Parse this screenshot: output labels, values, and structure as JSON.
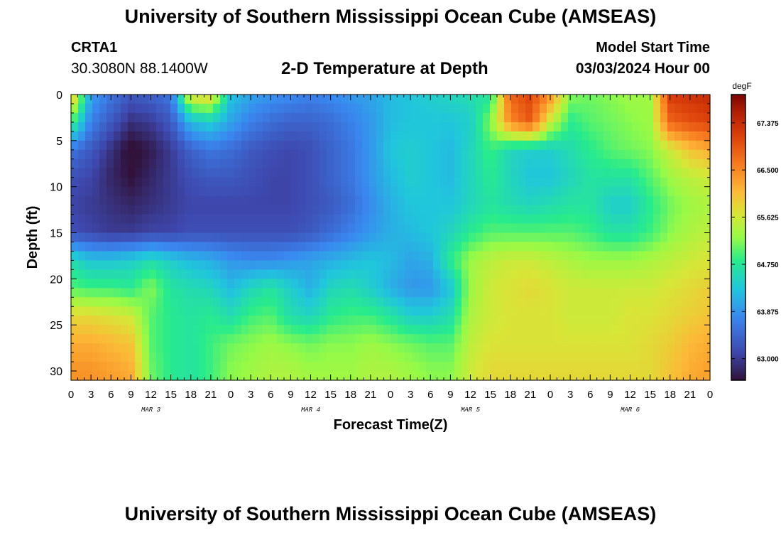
{
  "header": {
    "title": "University of Southern Mississippi Ocean Cube (AMSEAS)",
    "bottom_title": "University of Southern Mississippi Ocean Cube (AMSEAS)",
    "station": "CRTA1",
    "coords": "30.3080N  88.1400W",
    "subtitle": "2-D Temperature at Depth",
    "model_start_label": "Model Start Time",
    "model_start_date": "03/03/2024 Hour 00"
  },
  "chart_data": {
    "type": "heatmap",
    "title": "2-D Temperature at Depth",
    "xlabel": "Forecast Time(Z)",
    "ylabel": "Depth (ft)",
    "x_range_hours": [
      0,
      96
    ],
    "ylim": [
      31,
      0
    ],
    "y_ticks": [
      0,
      5,
      10,
      15,
      20,
      25,
      30
    ],
    "x_tick_labels": [
      "0",
      "3",
      "6",
      "9",
      "12",
      "15",
      "18",
      "21",
      "0",
      "3",
      "6",
      "9",
      "12",
      "15",
      "18",
      "21",
      "0",
      "3",
      "6",
      "9",
      "12",
      "15",
      "18",
      "21",
      "0",
      "3",
      "6",
      "9",
      "12",
      "15",
      "18",
      "21",
      "0"
    ],
    "day_labels": [
      {
        "label": "MAR 3",
        "hour": 12
      },
      {
        "label": "MAR 4",
        "hour": 36
      },
      {
        "label": "MAR 5",
        "hour": 60
      },
      {
        "label": "MAR 6",
        "hour": 84
      }
    ],
    "colorbar": {
      "unit": "degF",
      "min": 62.6,
      "max": 67.9,
      "ticks": [
        "63.000",
        "63.875",
        "64.750",
        "65.625",
        "66.500",
        "67.375"
      ]
    },
    "depth_levels_ft": [
      0,
      3,
      6,
      9,
      12,
      15,
      18,
      21,
      24,
      27,
      30
    ],
    "time_hours": [
      0,
      3,
      6,
      9,
      12,
      15,
      18,
      21,
      24,
      27,
      30,
      33,
      36,
      39,
      42,
      45,
      48,
      51,
      54,
      57,
      60,
      63,
      66,
      69,
      72,
      75,
      78,
      81,
      84,
      87,
      90,
      93,
      96
    ],
    "temperature_degF": [
      [
        66.2,
        64.0,
        63.6,
        63.3,
        63.4,
        63.6,
        65.8,
        65.9,
        64.3,
        64.0,
        63.9,
        63.8,
        63.7,
        63.8,
        63.9,
        64.0,
        64.2,
        64.3,
        64.4,
        64.5,
        64.6,
        64.7,
        66.8,
        67.1,
        66.4,
        65.2,
        65.1,
        65.2,
        65.3,
        65.3,
        67.2,
        67.3,
        67.4
      ],
      [
        65.0,
        63.7,
        63.3,
        62.9,
        63.0,
        63.3,
        64.2,
        64.4,
        64.0,
        63.7,
        63.5,
        63.4,
        63.4,
        63.5,
        63.7,
        63.9,
        64.2,
        64.3,
        64.3,
        64.3,
        64.4,
        65.2,
        66.5,
        66.9,
        65.6,
        64.8,
        65.0,
        65.1,
        65.2,
        65.3,
        66.8,
        67.0,
        67.1
      ],
      [
        63.6,
        63.3,
        62.9,
        62.5,
        62.7,
        63.0,
        63.4,
        63.6,
        63.5,
        63.3,
        63.2,
        63.1,
        63.2,
        63.4,
        63.6,
        63.9,
        64.3,
        64.4,
        64.3,
        64.2,
        64.5,
        64.9,
        64.5,
        64.4,
        64.4,
        64.6,
        64.8,
        65.0,
        65.1,
        65.2,
        65.6,
        66.0,
        66.2
      ],
      [
        63.2,
        63.1,
        62.8,
        62.6,
        62.8,
        63.0,
        63.2,
        63.3,
        63.3,
        63.2,
        63.1,
        63.1,
        63.2,
        63.4,
        63.6,
        63.9,
        64.2,
        64.4,
        64.3,
        64.2,
        64.5,
        64.8,
        64.5,
        64.3,
        64.3,
        64.5,
        64.7,
        64.7,
        64.7,
        65.0,
        65.3,
        65.5,
        65.6
      ],
      [
        63.1,
        63.0,
        62.9,
        62.8,
        62.9,
        63.0,
        63.1,
        63.1,
        63.1,
        63.1,
        63.1,
        63.1,
        63.2,
        63.3,
        63.5,
        63.8,
        64.1,
        64.3,
        64.3,
        64.3,
        64.5,
        64.7,
        64.6,
        64.5,
        64.6,
        64.7,
        64.7,
        64.4,
        64.4,
        64.8,
        65.1,
        65.3,
        65.4
      ],
      [
        63.2,
        63.1,
        63.0,
        63.0,
        63.1,
        63.1,
        63.2,
        63.2,
        63.2,
        63.2,
        63.2,
        63.2,
        63.3,
        63.5,
        63.7,
        63.9,
        64.1,
        64.2,
        64.3,
        64.5,
        64.8,
        65.0,
        65.0,
        65.0,
        65.0,
        65.0,
        64.9,
        64.7,
        64.7,
        64.9,
        65.2,
        65.4,
        65.5
      ],
      [
        64.6,
        64.3,
        64.3,
        64.4,
        64.6,
        64.4,
        64.2,
        64.1,
        63.9,
        63.8,
        63.8,
        63.9,
        64.0,
        64.1,
        64.2,
        64.3,
        64.2,
        64.0,
        64.1,
        64.8,
        65.3,
        65.5,
        65.6,
        65.6,
        65.5,
        65.4,
        65.3,
        65.3,
        65.3,
        65.4,
        65.5,
        65.6,
        65.7
      ],
      [
        65.0,
        64.9,
        64.9,
        64.8,
        65.2,
        64.7,
        64.6,
        64.5,
        64.2,
        64.5,
        64.7,
        64.4,
        64.1,
        64.5,
        64.6,
        64.4,
        64.1,
        63.9,
        63.9,
        64.3,
        65.3,
        65.6,
        65.7,
        65.8,
        65.7,
        65.6,
        65.6,
        65.6,
        65.6,
        65.6,
        65.7,
        65.8,
        65.9
      ],
      [
        65.8,
        65.8,
        65.7,
        65.6,
        65.0,
        64.8,
        64.7,
        64.8,
        64.6,
        64.9,
        65.0,
        64.6,
        64.5,
        64.8,
        64.9,
        64.9,
        64.7,
        64.4,
        64.4,
        64.6,
        65.4,
        65.6,
        65.7,
        65.7,
        65.7,
        65.6,
        65.6,
        65.6,
        65.7,
        65.7,
        65.8,
        65.9,
        66.0
      ],
      [
        66.2,
        66.2,
        66.1,
        66.0,
        65.0,
        64.8,
        64.7,
        64.9,
        65.1,
        65.2,
        65.3,
        65.2,
        65.1,
        65.2,
        65.2,
        65.3,
        65.2,
        65.1,
        65.0,
        65.0,
        65.5,
        65.7,
        65.7,
        65.7,
        65.7,
        65.7,
        65.7,
        65.7,
        65.7,
        65.8,
        65.9,
        66.1,
        66.2
      ],
      [
        66.4,
        66.4,
        66.3,
        66.2,
        65.1,
        64.8,
        64.7,
        64.9,
        65.2,
        65.3,
        65.4,
        65.4,
        65.3,
        65.3,
        65.3,
        65.4,
        65.4,
        65.3,
        65.2,
        65.2,
        65.6,
        65.8,
        65.8,
        65.8,
        65.8,
        65.8,
        65.8,
        65.8,
        65.8,
        65.8,
        66.0,
        66.2,
        66.3
      ]
    ]
  }
}
